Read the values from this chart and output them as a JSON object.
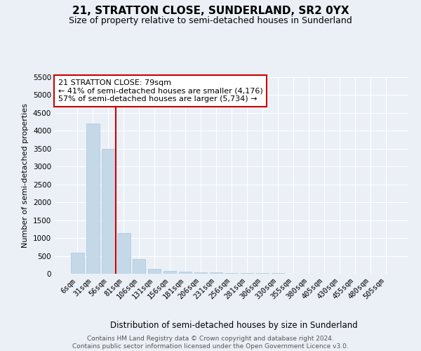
{
  "title1": "21, STRATTON CLOSE, SUNDERLAND, SR2 0YX",
  "title2": "Size of property relative to semi-detached houses in Sunderland",
  "xlabel": "Distribution of semi-detached houses by size in Sunderland",
  "ylabel": "Number of semi-detached properties",
  "categories": [
    "6sqm",
    "31sqm",
    "56sqm",
    "81sqm",
    "106sqm",
    "131sqm",
    "156sqm",
    "181sqm",
    "206sqm",
    "231sqm",
    "256sqm",
    "281sqm",
    "306sqm",
    "330sqm",
    "355sqm",
    "380sqm",
    "405sqm",
    "430sqm",
    "455sqm",
    "480sqm",
    "505sqm"
  ],
  "values": [
    580,
    4200,
    3500,
    1130,
    420,
    130,
    70,
    50,
    40,
    30,
    25,
    20,
    15,
    10,
    8,
    6,
    5,
    4,
    3,
    2,
    2
  ],
  "bar_color": "#c5d8e8",
  "bar_edge_color": "#a8c8de",
  "vline_color": "#cc0000",
  "vline_x": 2.5,
  "annotation_text": "21 STRATTON CLOSE: 79sqm\n← 41% of semi-detached houses are smaller (4,176)\n57% of semi-detached houses are larger (5,734) →",
  "annotation_box_color": "#ffffff",
  "annotation_box_edge": "#cc0000",
  "ylim": [
    0,
    5500
  ],
  "yticks": [
    0,
    500,
    1000,
    1500,
    2000,
    2500,
    3000,
    3500,
    4000,
    4500,
    5000,
    5500
  ],
  "footer": "Contains HM Land Registry data © Crown copyright and database right 2024.\nContains public sector information licensed under the Open Government Licence v3.0.",
  "bg_color": "#eaf0f6",
  "plot_bg_color": "#eaf0f6",
  "grid_color": "#ffffff",
  "title1_fontsize": 11,
  "title2_fontsize": 9,
  "xlabel_fontsize": 8.5,
  "ylabel_fontsize": 8,
  "tick_fontsize": 7.5,
  "footer_fontsize": 6.5,
  "ann_fontsize": 8
}
